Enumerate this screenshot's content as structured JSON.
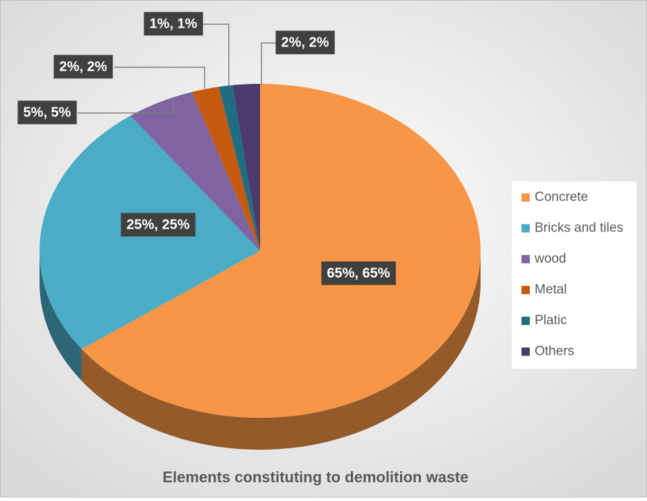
{
  "chart_data": {
    "type": "pie",
    "title": "Elements constituting to demolition waste",
    "categories": [
      "Concrete",
      "Bricks and tiles",
      "wood",
      "Metal",
      "Platic",
      "Others"
    ],
    "values": [
      65,
      25,
      5,
      2,
      1,
      2
    ],
    "value_labels": [
      "65%, 65%",
      "25%, 25%",
      "5%, 5%",
      "2%, 2%",
      "1%, 1%",
      "2%, 2%"
    ],
    "colors": [
      "#f79646",
      "#4bacc6",
      "#8064a2",
      "#c55a11",
      "#1f6e80",
      "#4b3a6e"
    ],
    "legend": "right"
  }
}
